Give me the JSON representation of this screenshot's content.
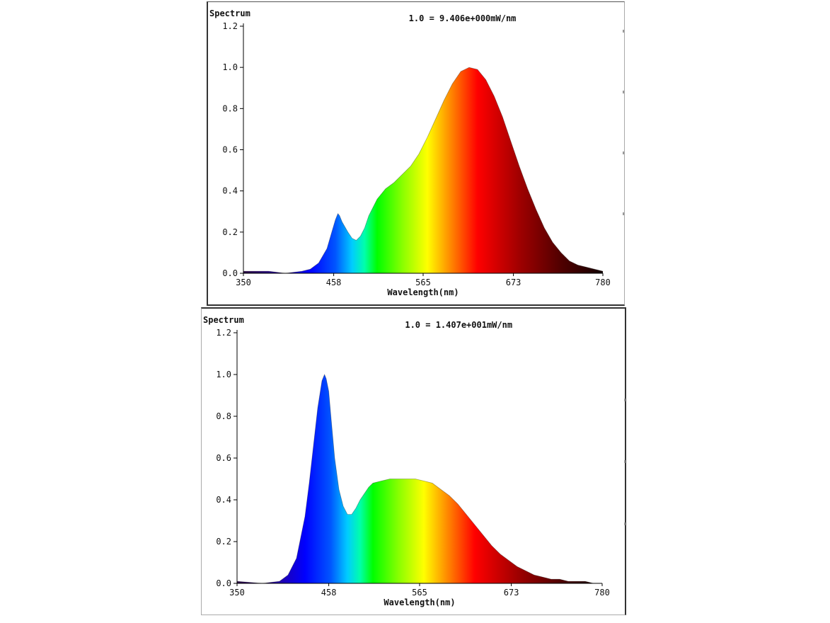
{
  "colors": {
    "axis": "#000000",
    "background": "#ffffff"
  },
  "chart_data": [
    {
      "type": "area",
      "title": "Spectrum",
      "scale_note": "1.0 = 9.406e+000mW/nm",
      "xlabel": "Wavelength(nm)",
      "ylabel": "",
      "xlim": [
        350,
        780
      ],
      "ylim": [
        0,
        1.2
      ],
      "xticks": [
        350,
        458,
        565,
        673,
        780
      ],
      "yticks": [
        "0.0",
        "0.2",
        "0.4",
        "0.6",
        "0.8",
        "1.0",
        "1.2"
      ],
      "fill": "wavelength-gradient",
      "grid": false,
      "x": [
        350,
        380,
        400,
        420,
        430,
        440,
        450,
        455,
        460,
        463,
        465,
        468,
        475,
        480,
        485,
        490,
        495,
        500,
        510,
        520,
        530,
        540,
        550,
        560,
        570,
        580,
        590,
        600,
        610,
        620,
        630,
        640,
        650,
        660,
        670,
        680,
        690,
        700,
        710,
        720,
        730,
        740,
        750,
        760,
        770,
        780
      ],
      "y": [
        0.01,
        0.01,
        0.0,
        0.01,
        0.02,
        0.05,
        0.12,
        0.19,
        0.26,
        0.29,
        0.28,
        0.25,
        0.2,
        0.17,
        0.16,
        0.18,
        0.22,
        0.28,
        0.36,
        0.41,
        0.44,
        0.48,
        0.52,
        0.58,
        0.66,
        0.75,
        0.84,
        0.92,
        0.98,
        1.0,
        0.99,
        0.94,
        0.86,
        0.76,
        0.64,
        0.52,
        0.41,
        0.31,
        0.22,
        0.15,
        0.1,
        0.06,
        0.04,
        0.03,
        0.02,
        0.01
      ]
    },
    {
      "type": "area",
      "title": "Spectrum",
      "scale_note": "1.0 = 1.407e+001mW/nm",
      "xlabel": "Wavelength(nm)",
      "ylabel": "",
      "xlim": [
        350,
        780
      ],
      "ylim": [
        0,
        1.2
      ],
      "xticks": [
        350,
        458,
        565,
        673,
        780
      ],
      "yticks": [
        "0.0",
        "0.2",
        "0.4",
        "0.6",
        "0.8",
        "1.0",
        "1.2"
      ],
      "fill": "wavelength-gradient",
      "grid": false,
      "x": [
        350,
        380,
        400,
        410,
        420,
        430,
        435,
        440,
        445,
        450,
        453,
        455,
        458,
        461,
        465,
        470,
        475,
        480,
        485,
        490,
        495,
        500,
        505,
        510,
        520,
        530,
        540,
        550,
        560,
        570,
        580,
        590,
        600,
        610,
        620,
        630,
        640,
        650,
        660,
        670,
        680,
        690,
        700,
        710,
        720,
        730,
        740,
        750,
        760,
        770,
        780
      ],
      "y": [
        0.01,
        0.0,
        0.01,
        0.04,
        0.12,
        0.32,
        0.48,
        0.66,
        0.84,
        0.97,
        1.0,
        0.98,
        0.92,
        0.78,
        0.6,
        0.45,
        0.37,
        0.33,
        0.33,
        0.36,
        0.4,
        0.43,
        0.46,
        0.48,
        0.49,
        0.5,
        0.5,
        0.5,
        0.5,
        0.49,
        0.48,
        0.45,
        0.42,
        0.38,
        0.33,
        0.28,
        0.23,
        0.18,
        0.14,
        0.11,
        0.08,
        0.06,
        0.04,
        0.03,
        0.02,
        0.02,
        0.01,
        0.01,
        0.01,
        0.0,
        0.0
      ]
    }
  ]
}
